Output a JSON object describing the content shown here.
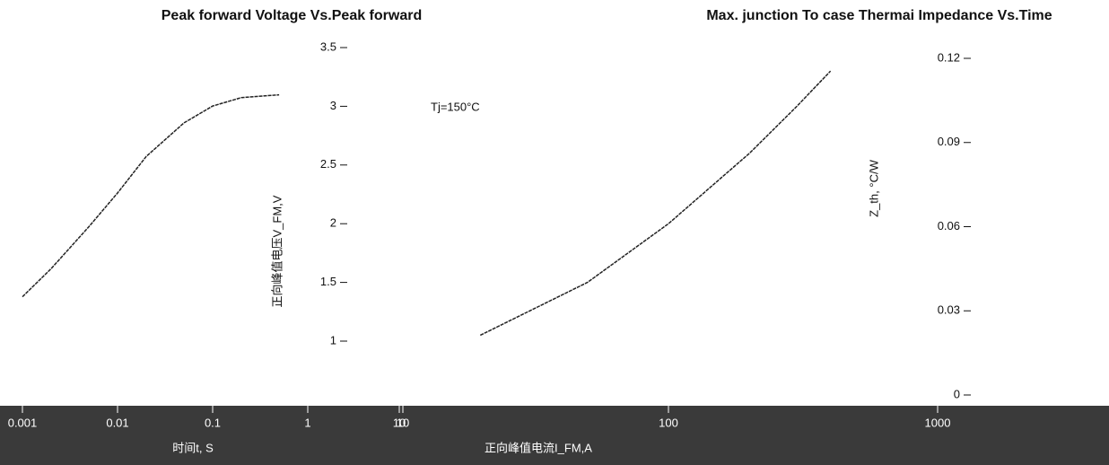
{
  "chart_data": [
    {
      "type": "line",
      "title": "Peak forward Voltage Vs.Peak forward",
      "x_label": "正向峰值电流I_FM,A",
      "y_label": "正向峰值电压V_FM,V",
      "annotation": "Tj=150°C",
      "log_x": true,
      "xlim": [
        10,
        1000
      ],
      "xticks": [
        10,
        100,
        1000
      ],
      "ylim": [
        1,
        3.5
      ],
      "yticks": [
        1,
        1.5,
        2,
        2.5,
        3,
        3.5
      ],
      "x": [
        20,
        50,
        100,
        200,
        300,
        400
      ],
      "series": [
        {
          "name": "Tj=150°C",
          "color": "#222222",
          "values": [
            1.05,
            1.5,
            2.0,
            2.6,
            3.0,
            3.3
          ]
        }
      ]
    },
    {
      "type": "line",
      "title": "Max. junction To case Thermai Impedance Vs.Time",
      "x_label": "时间t, S",
      "y_label": "Z_th, °C/W",
      "log_x": true,
      "xlim": [
        0.001,
        10
      ],
      "xticks": [
        0.001,
        0.01,
        0.1,
        1,
        10
      ],
      "ylim": [
        0,
        0.12
      ],
      "yticks": [
        0,
        0.03,
        0.06,
        0.09,
        0.12
      ],
      "x": [
        0.001,
        0.002,
        0.005,
        0.01,
        0.02,
        0.05,
        0.1,
        0.2,
        0.5
      ],
      "series": [
        {
          "name": "Zth",
          "color": "#222222",
          "values": [
            0.035,
            0.045,
            0.06,
            0.072,
            0.085,
            0.097,
            0.103,
            0.106,
            0.107
          ]
        }
      ]
    }
  ]
}
